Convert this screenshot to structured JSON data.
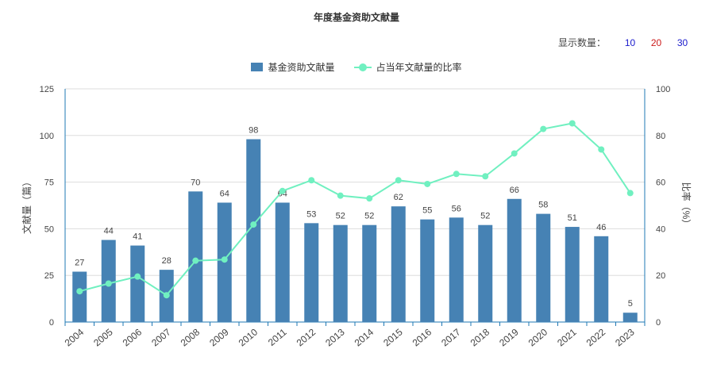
{
  "title": "年度基金资助文献量",
  "count_selector": {
    "label": "显示数量：",
    "options": [
      {
        "label": "10",
        "color": "#1a1acc"
      },
      {
        "label": "20",
        "color": "#cc1a1a"
      },
      {
        "label": "30",
        "color": "#1a1acc"
      }
    ]
  },
  "colors": {
    "bar": "#4682b4",
    "line": "#70f0c0",
    "grid": "#dddddd",
    "axis": "#1f78b4"
  },
  "chart_data": {
    "type": "bar",
    "categories": [
      "2004",
      "2005",
      "2006",
      "2007",
      "2008",
      "2009",
      "2010",
      "2011",
      "2012",
      "2013",
      "2014",
      "2015",
      "2016",
      "2017",
      "2018",
      "2019",
      "2020",
      "2021",
      "2022",
      "2023"
    ],
    "series": [
      {
        "name": "基金资助文献量",
        "type": "bar",
        "axis": "left",
        "values": [
          27,
          44,
          41,
          28,
          70,
          64,
          98,
          64,
          53,
          52,
          52,
          62,
          55,
          56,
          52,
          66,
          58,
          51,
          46,
          5
        ]
      },
      {
        "name": "占当年文献量的比率",
        "type": "line",
        "axis": "right",
        "values": [
          13.2,
          16.5,
          19.5,
          11.5,
          26.3,
          26.8,
          41.8,
          56.2,
          60.8,
          54.2,
          53.0,
          60.8,
          59.2,
          63.5,
          62.5,
          72.3,
          82.8,
          85.2,
          74.0,
          55.3
        ]
      }
    ],
    "y_left": {
      "label": "文献量（篇）",
      "ticks": [
        0,
        25,
        50,
        75,
        100,
        125
      ],
      "ylim": [
        0,
        125
      ]
    },
    "y_right": {
      "label": "比率（%）",
      "ticks": [
        0,
        20,
        40,
        60,
        80,
        100
      ],
      "ylim": [
        0,
        100
      ]
    },
    "grid": true,
    "legend_position": "top-center"
  }
}
